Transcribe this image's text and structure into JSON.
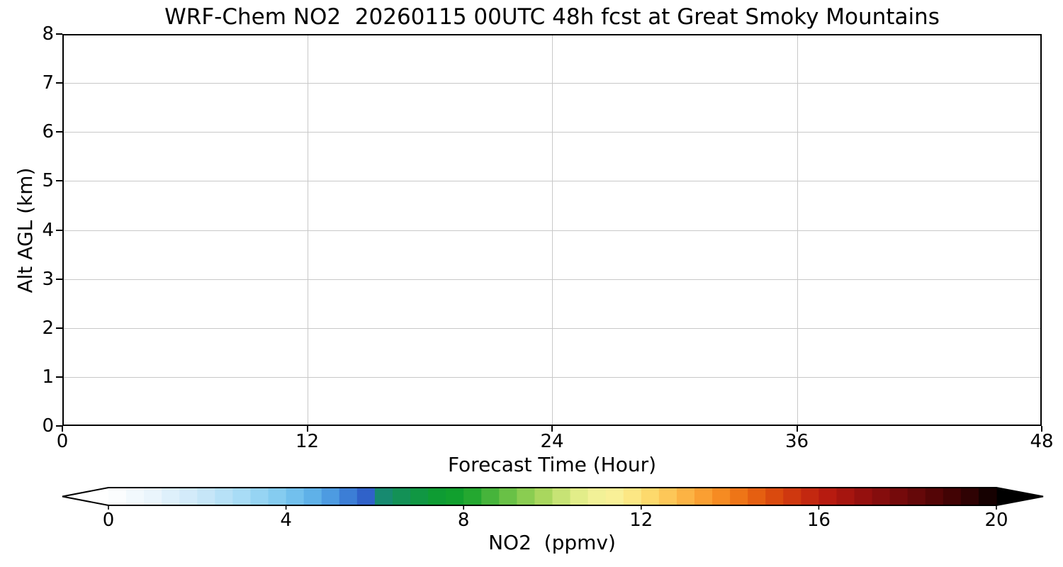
{
  "figure": {
    "background": "#ffffff",
    "axis_color": "#000000",
    "grid_color": "#c8c8c8"
  },
  "chart_data": {
    "type": "heatmap",
    "title": "WRF-Chem NO2  20260115 00UTC 48h fcst at Great Smoky Mountains",
    "xlabel": "Forecast Time (Hour)",
    "ylabel": "Alt AGL (km)",
    "xlim": [
      0,
      48
    ],
    "ylim": [
      0,
      8
    ],
    "x_ticks": [
      0,
      12,
      24,
      36,
      48
    ],
    "y_ticks": [
      0,
      1,
      2,
      3,
      4,
      5,
      6,
      7,
      8
    ],
    "grid": true,
    "legend_position": "none",
    "field": "uniform minimum value - entire time-height cross-section is rendered white (NO2 ~ 0 ppmv everywhere)",
    "colorbar": {
      "label": "NO2  (ppmv)",
      "orientation": "horizontal",
      "vmin": 0,
      "vmax": 20,
      "ticks": [
        0,
        4,
        8,
        12,
        16,
        20
      ],
      "segments": 50,
      "extend": "both",
      "under_color": "#ffffff",
      "over_color": "#000000",
      "gradient_stops": [
        {
          "v": 0.0,
          "c": "#ffffff"
        },
        {
          "v": 1.0,
          "c": "#eaf5fc"
        },
        {
          "v": 2.0,
          "c": "#cde9f9"
        },
        {
          "v": 3.0,
          "c": "#a8dcf6"
        },
        {
          "v": 4.0,
          "c": "#7cc8ef"
        },
        {
          "v": 4.8,
          "c": "#55a9e6"
        },
        {
          "v": 5.4,
          "c": "#3c7ed6"
        },
        {
          "v": 6.0,
          "c": "#2a54c3"
        },
        {
          "v": 6.2,
          "c": "#178a70"
        },
        {
          "v": 6.7,
          "c": "#12934f"
        },
        {
          "v": 7.4,
          "c": "#0e9c33"
        },
        {
          "v": 8.0,
          "c": "#13a22b"
        },
        {
          "v": 8.6,
          "c": "#46b43b"
        },
        {
          "v": 9.2,
          "c": "#7bc84b"
        },
        {
          "v": 9.8,
          "c": "#a9d75e"
        },
        {
          "v": 10.3,
          "c": "#cfe67b"
        },
        {
          "v": 10.8,
          "c": "#eef193"
        },
        {
          "v": 11.3,
          "c": "#f8f29c"
        },
        {
          "v": 11.8,
          "c": "#fce784"
        },
        {
          "v": 12.2,
          "c": "#fdd96c"
        },
        {
          "v": 12.7,
          "c": "#fdc253"
        },
        {
          "v": 13.2,
          "c": "#fca93a"
        },
        {
          "v": 13.8,
          "c": "#f68b22"
        },
        {
          "v": 14.4,
          "c": "#ea6a12"
        },
        {
          "v": 15.0,
          "c": "#da4a0e"
        },
        {
          "v": 15.6,
          "c": "#c92f10"
        },
        {
          "v": 16.2,
          "c": "#b71b10"
        },
        {
          "v": 17.0,
          "c": "#95100e"
        },
        {
          "v": 17.8,
          "c": "#750a0b"
        },
        {
          "v": 18.6,
          "c": "#540506"
        },
        {
          "v": 19.3,
          "c": "#350203"
        },
        {
          "v": 20.0,
          "c": "#0a0000"
        }
      ]
    }
  }
}
